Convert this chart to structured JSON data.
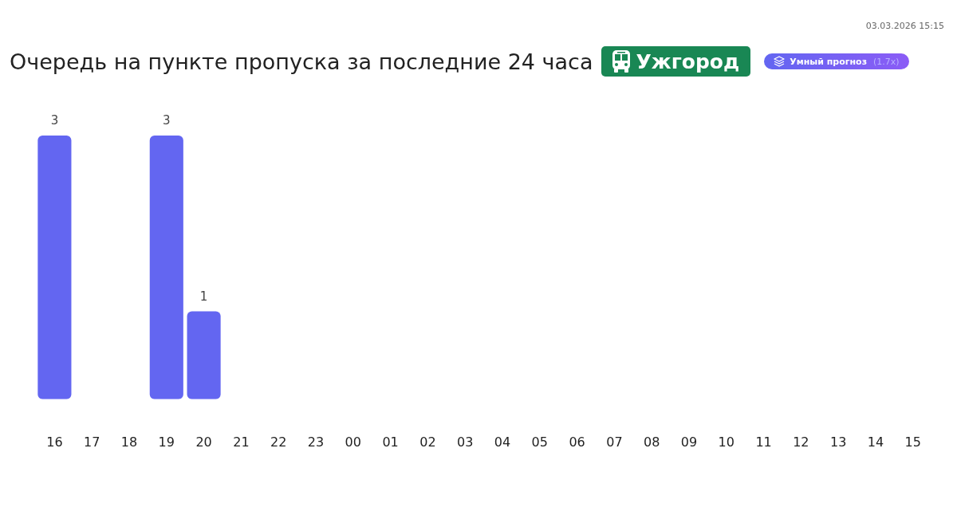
{
  "chart_data": {
    "type": "bar",
    "title": "Очередь на пункте пропуска за последние 24 часа",
    "annotations": [
      "Ужгород",
      "Умный прогноз",
      "(1.7x)",
      "03.03.2026 15:15"
    ],
    "categories": [
      "16",
      "17",
      "18",
      "19",
      "20",
      "21",
      "22",
      "23",
      "00",
      "01",
      "02",
      "03",
      "04",
      "05",
      "06",
      "07",
      "08",
      "09",
      "10",
      "11",
      "12",
      "13",
      "14",
      "15"
    ],
    "values": [
      3,
      0,
      0,
      3,
      1,
      0,
      0,
      0,
      0,
      0,
      0,
      0,
      0,
      0,
      0,
      0,
      0,
      0,
      0,
      0,
      0,
      0,
      0,
      0
    ],
    "value_labels": [
      "3",
      null,
      null,
      "3",
      "1",
      null,
      null,
      null,
      null,
      null,
      null,
      null,
      null,
      null,
      null,
      null,
      null,
      null,
      null,
      null,
      null,
      null,
      null,
      null
    ],
    "color": "#6366f1",
    "grid": false,
    "legend": false,
    "tick_labels": "x"
  }
}
